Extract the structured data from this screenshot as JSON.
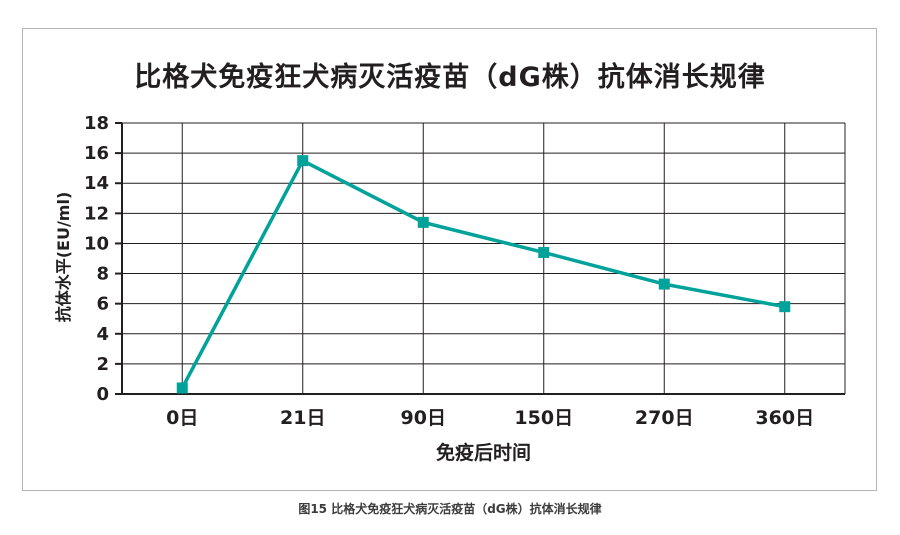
{
  "figure": {
    "caption": "图15 比格犬免疫狂犬病灭活疫苗（dG株）抗体消长规律"
  },
  "chart_data": {
    "type": "line",
    "title": "比格犬免疫狂犬病灭活疫苗（dG株）抗体消长规律",
    "categories": [
      "0日",
      "21日",
      "90日",
      "150日",
      "270日",
      "360日"
    ],
    "values": [
      0.4,
      15.5,
      11.4,
      9.4,
      7.3,
      5.8
    ],
    "xlabel": "免疫后时间",
    "ylabel": "抗体水平(EU/ml)",
    "ylim": [
      0,
      18
    ],
    "yticks": [
      0,
      2,
      4,
      6,
      8,
      10,
      12,
      14,
      16,
      18
    ],
    "grid": true,
    "legend": "none",
    "line_color": "#00a29a",
    "marker": "square",
    "text_color": "#231f20",
    "frame_border_color": "#b5b5b5"
  }
}
